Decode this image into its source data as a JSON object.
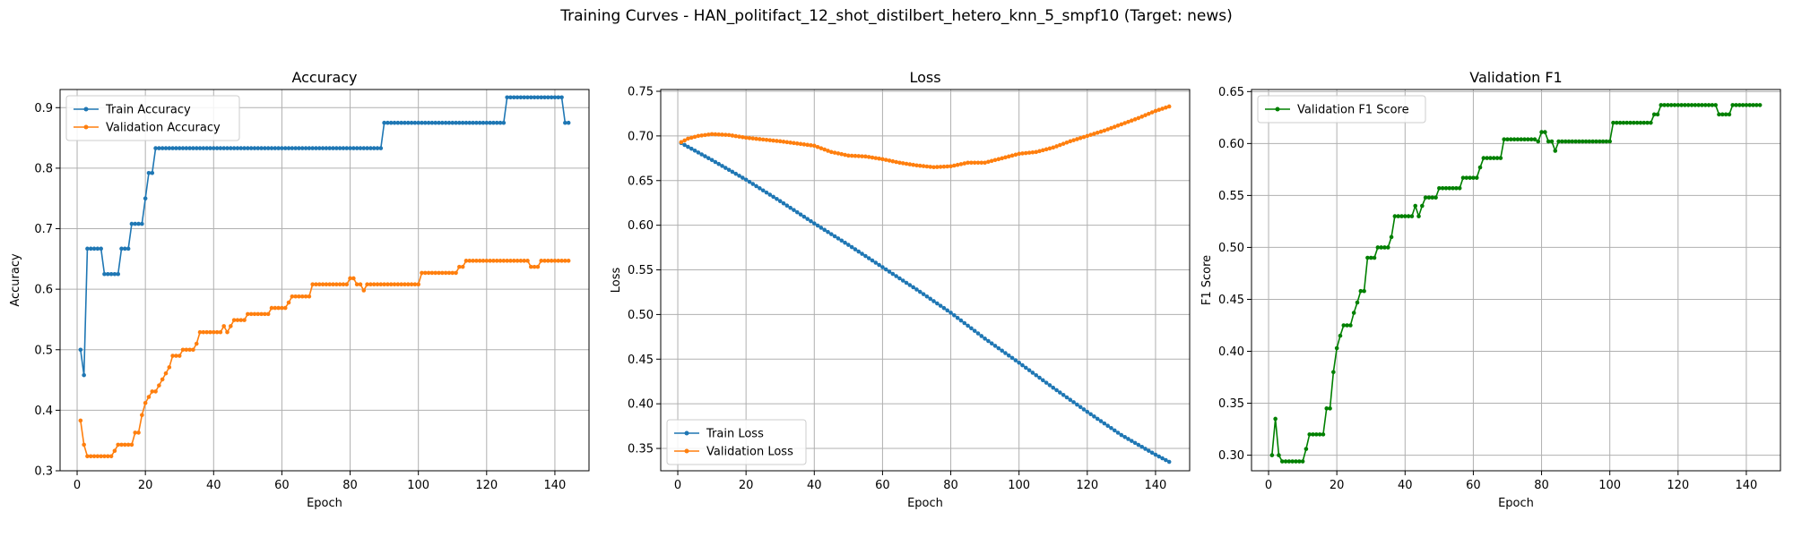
{
  "figure_title": "Training Curves - HAN_politifact_12_shot_distilbert_hetero_knn_5_smpf10 (Target: news)",
  "colors": {
    "train": "#1f77b4",
    "validation": "#ff7f0e",
    "f1": "#008000",
    "grid": "#b0b0b0"
  },
  "chart_data": [
    {
      "type": "line",
      "title": "Accuracy",
      "xlabel": "Epoch",
      "ylabel": "Accuracy",
      "xlim": [
        -5,
        150
      ],
      "ylim": [
        0.3,
        0.93
      ],
      "xticks": [
        0,
        20,
        40,
        60,
        80,
        100,
        120,
        140
      ],
      "yticks": [
        0.3,
        0.4,
        0.5,
        0.6,
        0.7,
        0.8,
        0.9
      ],
      "ytick_labels": [
        "0.3",
        "0.4",
        "0.5",
        "0.6",
        "0.7",
        "0.8",
        "0.9"
      ],
      "grid": true,
      "legend_position": "upper-left",
      "series": [
        {
          "name": "Train Accuracy",
          "color": "#1f77b4",
          "points": [
            [
              1,
              0.5
            ],
            [
              2,
              0.458
            ],
            [
              3,
              0.667
            ],
            [
              7,
              0.667
            ],
            [
              8,
              0.625
            ],
            [
              12,
              0.625
            ],
            [
              13,
              0.667
            ],
            [
              15,
              0.667
            ],
            [
              16,
              0.708
            ],
            [
              19,
              0.708
            ],
            [
              20,
              0.75
            ],
            [
              21,
              0.792
            ],
            [
              22,
              0.792
            ],
            [
              23,
              0.833
            ],
            [
              89,
              0.833
            ],
            [
              90,
              0.875
            ],
            [
              125,
              0.875
            ],
            [
              126,
              0.917
            ],
            [
              142,
              0.917
            ],
            [
              143,
              0.875
            ],
            [
              144,
              0.875
            ]
          ]
        },
        {
          "name": "Validation Accuracy",
          "color": "#ff7f0e",
          "points": [
            [
              1,
              0.383
            ],
            [
              2,
              0.343
            ],
            [
              3,
              0.324
            ],
            [
              10,
              0.324
            ],
            [
              11,
              0.333
            ],
            [
              12,
              0.343
            ],
            [
              16,
              0.343
            ],
            [
              17,
              0.363
            ],
            [
              18,
              0.363
            ],
            [
              19,
              0.392
            ],
            [
              20,
              0.412
            ],
            [
              21,
              0.422
            ],
            [
              22,
              0.431
            ],
            [
              23,
              0.431
            ],
            [
              24,
              0.441
            ],
            [
              25,
              0.451
            ],
            [
              26,
              0.461
            ],
            [
              27,
              0.471
            ],
            [
              28,
              0.49
            ],
            [
              30,
              0.49
            ],
            [
              31,
              0.5
            ],
            [
              34,
              0.5
            ],
            [
              35,
              0.51
            ],
            [
              36,
              0.529
            ],
            [
              42,
              0.529
            ],
            [
              43,
              0.539
            ],
            [
              44,
              0.529
            ],
            [
              45,
              0.539
            ],
            [
              46,
              0.549
            ],
            [
              49,
              0.549
            ],
            [
              50,
              0.559
            ],
            [
              56,
              0.559
            ],
            [
              57,
              0.569
            ],
            [
              61,
              0.569
            ],
            [
              62,
              0.578
            ],
            [
              63,
              0.588
            ],
            [
              68,
              0.588
            ],
            [
              69,
              0.608
            ],
            [
              79,
              0.608
            ],
            [
              80,
              0.618
            ],
            [
              81,
              0.618
            ],
            [
              82,
              0.608
            ],
            [
              83,
              0.608
            ],
            [
              84,
              0.598
            ],
            [
              85,
              0.608
            ],
            [
              100,
              0.608
            ],
            [
              101,
              0.627
            ],
            [
              111,
              0.627
            ],
            [
              112,
              0.637
            ],
            [
              113,
              0.637
            ],
            [
              114,
              0.647
            ],
            [
              132,
              0.647
            ],
            [
              133,
              0.637
            ],
            [
              135,
              0.637
            ],
            [
              136,
              0.647
            ],
            [
              144,
              0.647
            ]
          ]
        }
      ]
    },
    {
      "type": "line",
      "title": "Loss",
      "xlabel": "Epoch",
      "ylabel": "Loss",
      "xlim": [
        -5,
        150
      ],
      "ylim": [
        0.325,
        0.752
      ],
      "xticks": [
        0,
        20,
        40,
        60,
        80,
        100,
        120,
        140
      ],
      "yticks": [
        0.35,
        0.4,
        0.45,
        0.5,
        0.55,
        0.6,
        0.65,
        0.7,
        0.75
      ],
      "ytick_labels": [
        "0.35",
        "0.40",
        "0.45",
        "0.50",
        "0.55",
        "0.60",
        "0.65",
        "0.70",
        "0.75"
      ],
      "grid": true,
      "legend_position": "lower-left",
      "series": [
        {
          "name": "Train Loss",
          "color": "#1f77b4",
          "points": [
            [
              1,
              0.692
            ],
            [
              10,
              0.673
            ],
            [
              20,
              0.651
            ],
            [
              30,
              0.627
            ],
            [
              40,
              0.602
            ],
            [
              50,
              0.578
            ],
            [
              60,
              0.553
            ],
            [
              70,
              0.528
            ],
            [
              80,
              0.502
            ],
            [
              90,
              0.473
            ],
            [
              100,
              0.446
            ],
            [
              110,
              0.418
            ],
            [
              120,
              0.391
            ],
            [
              130,
              0.365
            ],
            [
              140,
              0.343
            ],
            [
              144,
              0.335
            ]
          ]
        },
        {
          "name": "Validation Loss",
          "color": "#ff7f0e",
          "points": [
            [
              1,
              0.693
            ],
            [
              3,
              0.697
            ],
            [
              6,
              0.7
            ],
            [
              10,
              0.702
            ],
            [
              15,
              0.701
            ],
            [
              20,
              0.698
            ],
            [
              30,
              0.694
            ],
            [
              40,
              0.689
            ],
            [
              45,
              0.682
            ],
            [
              50,
              0.678
            ],
            [
              55,
              0.677
            ],
            [
              60,
              0.674
            ],
            [
              65,
              0.67
            ],
            [
              70,
              0.667
            ],
            [
              75,
              0.665
            ],
            [
              80,
              0.666
            ],
            [
              85,
              0.67
            ],
            [
              90,
              0.67
            ],
            [
              95,
              0.675
            ],
            [
              100,
              0.68
            ],
            [
              105,
              0.682
            ],
            [
              110,
              0.687
            ],
            [
              115,
              0.694
            ],
            [
              120,
              0.7
            ],
            [
              125,
              0.706
            ],
            [
              130,
              0.713
            ],
            [
              135,
              0.72
            ],
            [
              140,
              0.728
            ],
            [
              144,
              0.733
            ]
          ]
        }
      ]
    },
    {
      "type": "line",
      "title": "Validation F1",
      "xlabel": "Epoch",
      "ylabel": "F1 Score",
      "xlim": [
        -5,
        150
      ],
      "ylim": [
        0.285,
        0.652
      ],
      "xticks": [
        0,
        20,
        40,
        60,
        80,
        100,
        120,
        140
      ],
      "yticks": [
        0.3,
        0.35,
        0.4,
        0.45,
        0.5,
        0.55,
        0.6,
        0.65
      ],
      "ytick_labels": [
        "0.30",
        "0.35",
        "0.40",
        "0.45",
        "0.50",
        "0.55",
        "0.60",
        "0.65"
      ],
      "grid": true,
      "legend_position": "upper-left",
      "series": [
        {
          "name": "Validation F1 Score",
          "color": "#008000",
          "points": [
            [
              1,
              0.3
            ],
            [
              2,
              0.335
            ],
            [
              3,
              0.3
            ],
            [
              4,
              0.294
            ],
            [
              10,
              0.294
            ],
            [
              11,
              0.306
            ],
            [
              12,
              0.32
            ],
            [
              16,
              0.32
            ],
            [
              17,
              0.345
            ],
            [
              18,
              0.345
            ],
            [
              19,
              0.38
            ],
            [
              20,
              0.403
            ],
            [
              21,
              0.415
            ],
            [
              22,
              0.425
            ],
            [
              24,
              0.425
            ],
            [
              25,
              0.437
            ],
            [
              26,
              0.447
            ],
            [
              27,
              0.458
            ],
            [
              28,
              0.458
            ],
            [
              29,
              0.49
            ],
            [
              31,
              0.49
            ],
            [
              32,
              0.5
            ],
            [
              35,
              0.5
            ],
            [
              36,
              0.51
            ],
            [
              37,
              0.53
            ],
            [
              42,
              0.53
            ],
            [
              43,
              0.54
            ],
            [
              44,
              0.53
            ],
            [
              45,
              0.54
            ],
            [
              46,
              0.548
            ],
            [
              49,
              0.548
            ],
            [
              50,
              0.557
            ],
            [
              56,
              0.557
            ],
            [
              57,
              0.567
            ],
            [
              61,
              0.567
            ],
            [
              62,
              0.577
            ],
            [
              63,
              0.586
            ],
            [
              68,
              0.586
            ],
            [
              69,
              0.604
            ],
            [
              78,
              0.604
            ],
            [
              79,
              0.602
            ],
            [
              80,
              0.611
            ],
            [
              81,
              0.611
            ],
            [
              82,
              0.602
            ],
            [
              83,
              0.602
            ],
            [
              84,
              0.593
            ],
            [
              85,
              0.602
            ],
            [
              100,
              0.602
            ],
            [
              101,
              0.62
            ],
            [
              112,
              0.62
            ],
            [
              113,
              0.628
            ],
            [
              114,
              0.628
            ],
            [
              115,
              0.637
            ],
            [
              131,
              0.637
            ],
            [
              132,
              0.628
            ],
            [
              135,
              0.628
            ],
            [
              136,
              0.637
            ],
            [
              144,
              0.637
            ]
          ]
        }
      ]
    }
  ]
}
